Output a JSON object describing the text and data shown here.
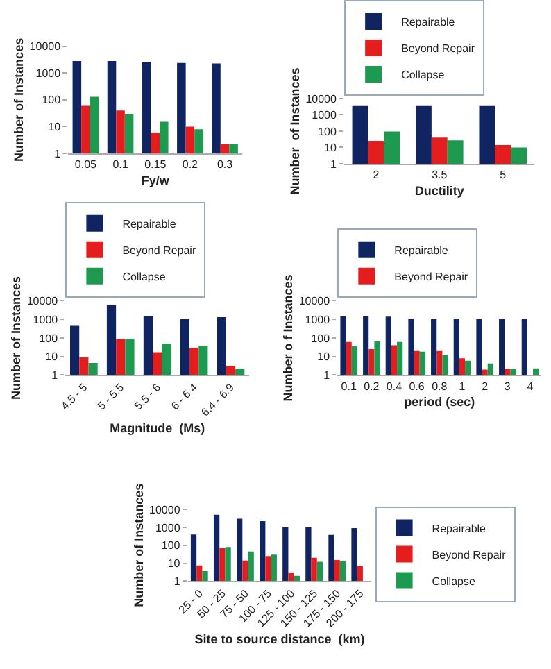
{
  "chart_data": [
    {
      "type": "bar",
      "categories": [
        "0.05",
        "0.1",
        "0.15",
        "0.2",
        "0.3"
      ],
      "xlabel": "Fy/w",
      "ylabel": "Number of Instances",
      "log": true,
      "ylim": [
        1,
        10000
      ],
      "yticks": [
        1,
        10,
        100,
        1000,
        10000
      ],
      "grid": false,
      "legend": false,
      "series": [
        {
          "color": "#0f2460",
          "values": [
            2800,
            2800,
            2600,
            2400,
            2300
          ]
        },
        {
          "color": "#e41e1e",
          "values": [
            60,
            40,
            6,
            10,
            2.2
          ]
        },
        {
          "color": "#1e9a50",
          "values": [
            130,
            30,
            15,
            8,
            2.2
          ]
        }
      ]
    },
    {
      "type": "bar",
      "categories": [
        "2",
        "3.5",
        "5"
      ],
      "xlabel": "Ductility",
      "ylabel": "Number  of Instances",
      "log": true,
      "ylim": [
        1,
        10000
      ],
      "yticks": [
        1,
        10,
        100,
        1000,
        10000
      ],
      "grid": false,
      "legend": "top",
      "series": [
        {
          "name": "Repairable",
          "color": "#0f2460",
          "values": [
            3500,
            3500,
            3500
          ]
        },
        {
          "name": "Beyond Repair",
          "color": "#e41e1e",
          "values": [
            25,
            40,
            14
          ]
        },
        {
          "name": "Collapse",
          "color": "#1e9a50",
          "values": [
            95,
            27,
            10
          ]
        }
      ]
    },
    {
      "type": "bar",
      "categories": [
        "4.5 - 5",
        "5 - 5.5",
        "5.5 - 6",
        "6 - 6.4",
        "6.4 - 6.9"
      ],
      "xlabel": "Magnitude  (Ms)",
      "ylabel": "Number of Instances",
      "log": true,
      "ylim": [
        1,
        10000
      ],
      "yticks": [
        1,
        10,
        100,
        1000,
        10000
      ],
      "grid": false,
      "legend": "top",
      "series": [
        {
          "name": "Repairable",
          "color": "#0f2460",
          "values": [
            450,
            6000,
            1500,
            1000,
            1300
          ]
        },
        {
          "name": "Beyond Repair",
          "color": "#e41e1e",
          "values": [
            9,
            90,
            17,
            30,
            3.2
          ]
        },
        {
          "name": "Collapse",
          "color": "#1e9a50",
          "values": [
            4.5,
            90,
            50,
            38,
            2.2
          ]
        }
      ]
    },
    {
      "type": "bar",
      "categories": [
        "0.1",
        "0.2",
        "0.4",
        "0.6",
        "0.8",
        "1",
        "2",
        "3",
        "4"
      ],
      "xlabel": "period (sec)",
      "ylabel": "Number o f Instances",
      "log": true,
      "ylim": [
        1,
        10000
      ],
      "yticks": [
        1,
        10,
        100,
        1000,
        10000
      ],
      "grid": false,
      "legend": "top",
      "series": [
        {
          "name": "Repairable",
          "color": "#0f2460",
          "values": [
            1500,
            1500,
            1400,
            1000,
            1000,
            1000,
            1000,
            1000,
            1000
          ]
        },
        {
          "name": "Beyond Repair",
          "color": "#e41e1e",
          "values": [
            60,
            25,
            40,
            20,
            20,
            8,
            2,
            2.2,
            null
          ]
        },
        {
          "color": "#1e9a50",
          "values": [
            35,
            65,
            60,
            18,
            12,
            6,
            4.2,
            2.2,
            2.3
          ]
        }
      ]
    },
    {
      "type": "bar",
      "categories": [
        "25 - 0",
        "50 - 25",
        "75 - 50",
        "100 - 75",
        "125 - 100",
        "150 - 125",
        "175 - 150",
        "200 - 175"
      ],
      "xlabel": "Site to source distance  (km)",
      "ylabel": "Number of Instances",
      "log": true,
      "ylim": [
        1,
        10000
      ],
      "yticks": [
        1,
        10,
        100,
        1000,
        10000
      ],
      "grid": false,
      "legend": "right",
      "series": [
        {
          "name": "Repairable",
          "color": "#0f2460",
          "values": [
            400,
            5000,
            3000,
            2200,
            1000,
            1000,
            380,
            900
          ]
        },
        {
          "name": "Beyond Repair",
          "color": "#e41e1e",
          "values": [
            7.5,
            70,
            14,
            25,
            3,
            20,
            15,
            7
          ]
        },
        {
          "name": "Collapse",
          "color": "#1e9a50",
          "values": [
            3.6,
            80,
            45,
            30,
            2,
            12,
            13,
            null
          ]
        }
      ]
    }
  ]
}
